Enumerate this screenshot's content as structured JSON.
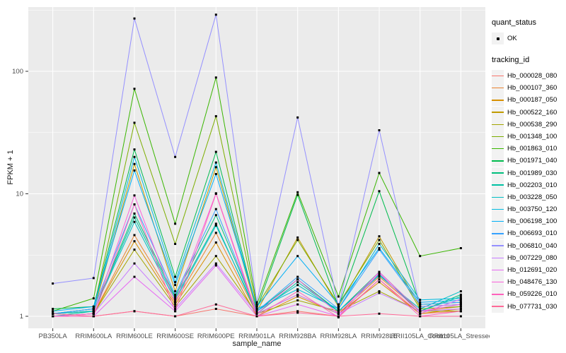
{
  "figure": {
    "background": "#FFFFFF",
    "panel_background": "#EBEBEB",
    "gridline_color": "#FFFFFF",
    "tick_color": "#333333",
    "axis_text_color": "#4D4D4D",
    "point_color": "#000000"
  },
  "axes": {
    "y_title": "FPKM + 1",
    "x_title": "sample_name",
    "y_tick_labels": [
      "1",
      "10",
      "100"
    ],
    "y_ticks": [
      1,
      10,
      100
    ],
    "y_minor_ticks": [
      3.1623,
      31.623,
      316.23
    ]
  },
  "legend": {
    "quant_title": "quant_status",
    "quant_items": [
      {
        "label": "OK",
        "marker": "point"
      }
    ],
    "tracking_title": "tracking_id"
  },
  "chart_data": {
    "type": "line",
    "title": "",
    "xlabel": "sample_name",
    "ylabel": "FPKM + 1",
    "y_scale": "log10",
    "ylim": [
      0.95,
      333
    ],
    "grid": true,
    "legend_position": "right",
    "categories": [
      "PB350LA",
      "RRIM600LA",
      "RRIM600LE",
      "RRIM600SE",
      "RRIM600PE",
      "RRIM901LA",
      "RRIM928BA",
      "RRIM928LA",
      "RRIM928LE",
      "RRII105LA_Control",
      "RRII105LA_Stressed"
    ],
    "series": [
      {
        "name": "Hb_000028_080",
        "color": "#F8766D",
        "values": [
          1.0,
          1.0,
          1.1,
          1.0,
          1.15,
          1.0,
          1.1,
          1.0,
          2.0,
          1.05,
          1.1
        ]
      },
      {
        "name": "Hb_000107_360",
        "color": "#EA8331",
        "values": [
          1.0,
          1.05,
          4.6,
          1.3,
          4.8,
          1.05,
          1.5,
          1.05,
          2.1,
          1.1,
          1.2
        ]
      },
      {
        "name": "Hb_000187_050",
        "color": "#D89000",
        "values": [
          1.0,
          1.05,
          4.1,
          1.25,
          4.0,
          1.0,
          1.45,
          1.05,
          1.9,
          1.05,
          1.15
        ]
      },
      {
        "name": "Hb_000522_160",
        "color": "#C09B00",
        "values": [
          1.05,
          1.1,
          17.5,
          1.6,
          16.5,
          1.1,
          4.4,
          1.2,
          4.5,
          1.2,
          1.25
        ]
      },
      {
        "name": "Hb_000538_290",
        "color": "#A3A500",
        "values": [
          1.0,
          1.05,
          3.5,
          1.2,
          3.1,
          1.05,
          1.35,
          1.1,
          1.6,
          1.1,
          1.1
        ]
      },
      {
        "name": "Hb_001348_100",
        "color": "#7CAE00",
        "values": [
          1.05,
          1.15,
          38,
          3.9,
          43,
          1.2,
          4.2,
          1.25,
          4.2,
          1.15,
          1.2
        ]
      },
      {
        "name": "Hb_001863_010",
        "color": "#39B600",
        "values": [
          1.1,
          1.4,
          72,
          5.7,
          89,
          1.25,
          10.3,
          1.45,
          14.8,
          3.1,
          3.6
        ]
      },
      {
        "name": "Hb_001971_040",
        "color": "#00BB4E",
        "values": [
          1.15,
          1.2,
          23,
          2.1,
          22,
          1.15,
          9.8,
          1.2,
          10.5,
          1.25,
          1.3
        ]
      },
      {
        "name": "Hb_001989_030",
        "color": "#00BF7D",
        "values": [
          1.05,
          1.1,
          6.9,
          1.45,
          6.7,
          1.1,
          2.0,
          1.1,
          2.3,
          1.1,
          1.5
        ]
      },
      {
        "name": "Hb_002203_010",
        "color": "#00C1A3",
        "values": [
          1.0,
          1.1,
          6.4,
          1.4,
          5.7,
          1.05,
          1.9,
          1.1,
          2.2,
          1.1,
          1.45
        ]
      },
      {
        "name": "Hb_003228_050",
        "color": "#00BFC4",
        "values": [
          1.05,
          1.1,
          5.9,
          1.35,
          5.5,
          1.1,
          1.8,
          1.1,
          2.15,
          1.15,
          1.6
        ]
      },
      {
        "name": "Hb_003750_120",
        "color": "#00BAE0",
        "values": [
          1.05,
          1.15,
          20,
          1.9,
          18,
          1.15,
          1.66,
          1.15,
          3.9,
          1.36,
          1.4
        ]
      },
      {
        "name": "Hb_006198_100",
        "color": "#00B0F6",
        "values": [
          1.1,
          1.2,
          15.5,
          1.8,
          14.5,
          1.2,
          3.1,
          1.25,
          3.6,
          1.3,
          1.35
        ]
      },
      {
        "name": "Hb_006693_010",
        "color": "#35A2FF",
        "values": [
          1.05,
          1.15,
          8.2,
          1.5,
          7.5,
          1.1,
          2.1,
          1.15,
          3.5,
          1.25,
          1.3
        ]
      },
      {
        "name": "Hb_006810_040",
        "color": "#9590FF",
        "values": [
          1.85,
          2.05,
          270,
          20,
          290,
          1.3,
          42,
          1.2,
          33,
          1.2,
          1.25
        ]
      },
      {
        "name": "Hb_007229_080",
        "color": "#C77CFF",
        "values": [
          1.0,
          1.05,
          2.7,
          1.15,
          2.7,
          1.05,
          1.5,
          1.05,
          1.55,
          1.1,
          1.15
        ]
      },
      {
        "name": "Hb_012691_020",
        "color": "#E76BF3",
        "values": [
          1.0,
          1.0,
          2.1,
          1.1,
          2.6,
          1.0,
          1.25,
          1.0,
          2.25,
          1.05,
          1.38
        ]
      },
      {
        "name": "Hb_048476_130",
        "color": "#FA62DB",
        "values": [
          1.0,
          1.05,
          9.7,
          1.3,
          10.1,
          1.05,
          2.0,
          1.05,
          2.3,
          1.1,
          1.25
        ]
      },
      {
        "name": "Hb_059226_010",
        "color": "#FF62BC",
        "values": [
          1.0,
          1.0,
          8.2,
          1.1,
          10.0,
          1.0,
          1.6,
          0.98,
          2.0,
          1.0,
          1.1
        ]
      },
      {
        "name": "Hb_077731_030",
        "color": "#FF6A98",
        "values": [
          1.05,
          1.0,
          1.1,
          1.0,
          1.25,
          1.0,
          1.07,
          1.0,
          1.05,
          1.0,
          1.0
        ]
      }
    ]
  }
}
